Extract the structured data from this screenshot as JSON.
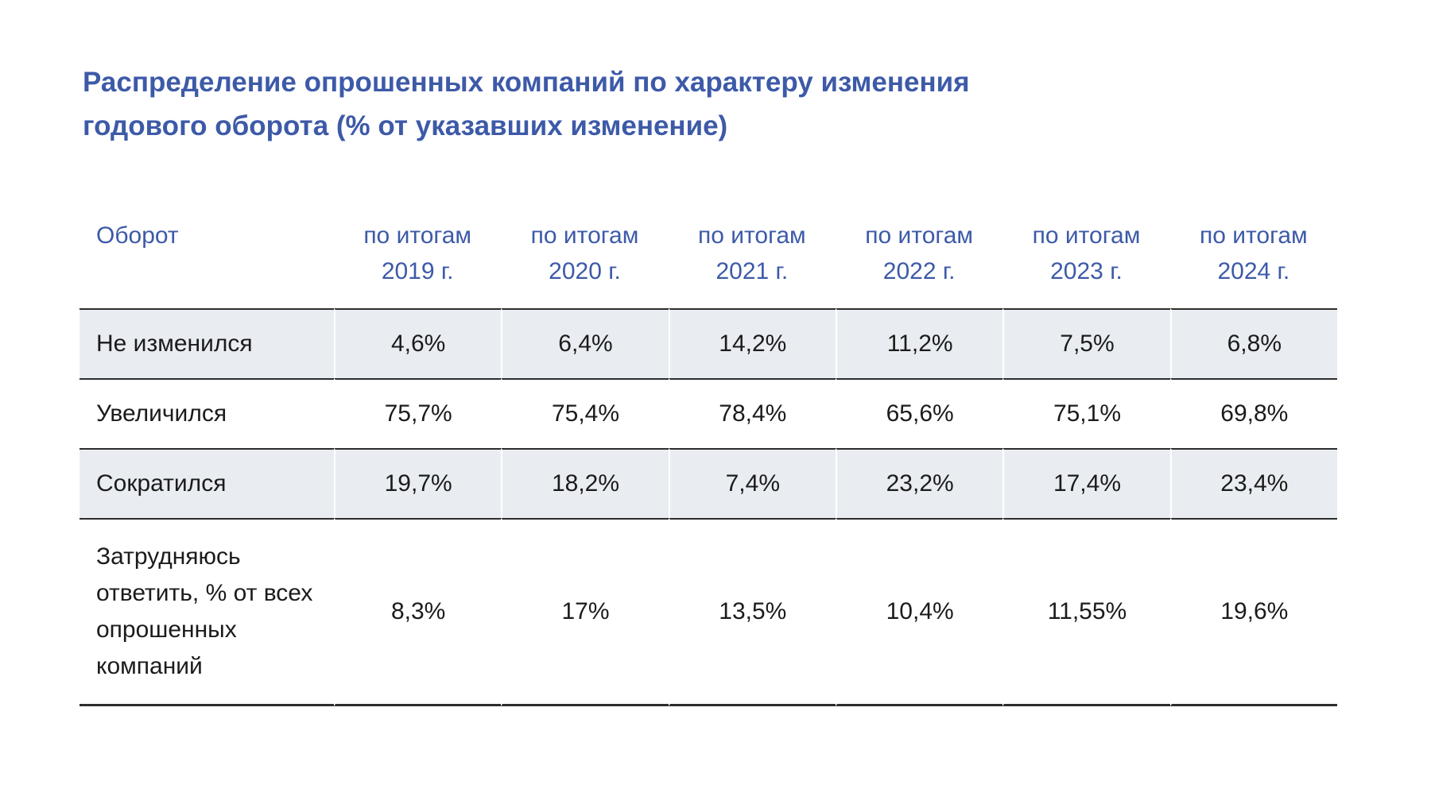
{
  "title": {
    "full": "Распределение опрошенных компаний по характеру изменения годового оборота (% от указавших изменение)",
    "line1": "Распределение опрошенных компаний по характеру изменения",
    "line2": "годового оборота (% от указавших изменение)"
  },
  "table": {
    "label_header": "Оборот",
    "columns": [
      {
        "period": "по итогам",
        "year": "2019 г."
      },
      {
        "period": "по итогам",
        "year": "2020 г."
      },
      {
        "period": "по итогам",
        "year": "2021 г."
      },
      {
        "period": "по итогам",
        "year": "2022 г."
      },
      {
        "period": "по итогам",
        "year": "2023 г."
      },
      {
        "period": "по итогам",
        "year": "2024 г."
      }
    ],
    "rows": [
      {
        "label": "Не изменился",
        "values": [
          "4,6%",
          "6,4%",
          "14,2%",
          "11,2%",
          "7,5%",
          "6,8%"
        ]
      },
      {
        "label": "Увеличился",
        "values": [
          "75,7%",
          "75,4%",
          "78,4%",
          "65,6%",
          "75,1%",
          "69,8%"
        ]
      },
      {
        "label": "Сократился",
        "values": [
          "19,7%",
          "18,2%",
          "7,4%",
          "23,2%",
          "17,4%",
          "23,4%"
        ]
      },
      {
        "label": "Затрудняюсь ответить, % от всех опрошенных компаний",
        "values": [
          "8,3%",
          "17%",
          "13,5%",
          "10,4%",
          "11,55%",
          "19,6%"
        ]
      }
    ]
  },
  "chart_data": {
    "type": "table",
    "title": "Распределение опрошенных компаний по характеру изменения годового оборота (% от указавших изменение)",
    "categories": [
      "по итогам 2019 г.",
      "по итогам 2020 г.",
      "по итогам 2021 г.",
      "по итогам 2022 г.",
      "по итогам 2023 г.",
      "по итогам 2024 г."
    ],
    "row_dimension": "Оборот",
    "unit": "%",
    "series": [
      {
        "name": "Не изменился",
        "values": [
          4.6,
          6.4,
          14.2,
          11.2,
          7.5,
          6.8
        ]
      },
      {
        "name": "Увеличился",
        "values": [
          75.7,
          75.4,
          78.4,
          65.6,
          75.1,
          69.8
        ]
      },
      {
        "name": "Сократился",
        "values": [
          19.7,
          18.2,
          7.4,
          23.2,
          17.4,
          23.4
        ]
      },
      {
        "name": "Затрудняюсь ответить, % от всех опрошенных компаний",
        "values": [
          8.3,
          17,
          13.5,
          10.4,
          11.55,
          19.6
        ]
      }
    ]
  },
  "colors": {
    "accent_blue": "#3d5aa8",
    "row_shade": "#e9edf2",
    "border_dark": "#2d2d2d",
    "text": "#1b1b1b",
    "background": "#ffffff"
  }
}
